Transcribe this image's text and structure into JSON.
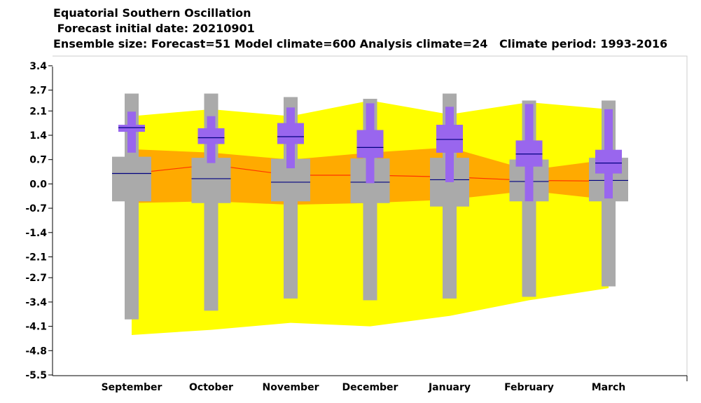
{
  "header": {
    "title": "Equatorial Southern Oscillation",
    "subtitle": " Forecast initial date: 20210901",
    "info": "Ensemble size: Forecast=51 Model climate=600 Analysis climate=24   Climate period: 1993-2016"
  },
  "colors": {
    "climate_outer": "#ffff00",
    "climate_inner": "#ffaa00",
    "climate_median": "#ff3300",
    "model_box": "#aaaaaa",
    "forecast_box": "#9966ee",
    "median_line": "#000080"
  },
  "chart_data": {
    "type": "box",
    "categories": [
      "September",
      "October",
      "November",
      "December",
      "January",
      "February",
      "March"
    ],
    "ylim": [
      -5.5,
      3.7
    ],
    "yticks": [
      "3.4",
      "2.7",
      "2.1",
      "1.4",
      "0.7",
      "0.0",
      "-0.7",
      "-1.4",
      "-2.1",
      "-2.7",
      "-3.4",
      "-4.1",
      "-4.8",
      "-5.5"
    ],
    "climate_band": {
      "min": [
        -4.35,
        -4.2,
        -4.0,
        -4.1,
        -3.8,
        -3.35,
        -3.0
      ],
      "p25": [
        -0.55,
        -0.5,
        -0.6,
        -0.55,
        -0.45,
        -0.2,
        -0.45
      ],
      "median": [
        0.3,
        0.55,
        0.25,
        0.25,
        0.2,
        0.1,
        0.08
      ],
      "p75": [
        1.0,
        0.9,
        0.7,
        0.9,
        1.05,
        0.4,
        0.7
      ],
      "max": [
        1.95,
        2.15,
        1.95,
        2.4,
        2.0,
        2.35,
        2.15
      ]
    },
    "series": [
      {
        "name": "Model climate",
        "min": [
          -3.9,
          -3.65,
          -3.3,
          -3.35,
          -3.3,
          -3.25,
          -2.95
        ],
        "p10": [
          -0.5,
          -0.55,
          -0.5,
          -0.55,
          -0.65,
          -0.5,
          -0.5
        ],
        "p25": [
          -0.5,
          -0.55,
          -0.5,
          -0.55,
          -0.65,
          -0.5,
          -0.5
        ],
        "median": [
          0.3,
          0.15,
          0.05,
          0.05,
          0.12,
          0.07,
          0.1
        ],
        "p75": [
          0.78,
          0.75,
          0.72,
          0.73,
          0.75,
          0.7,
          0.75
        ],
        "p90": [
          0.78,
          0.75,
          0.72,
          0.73,
          0.75,
          0.7,
          0.75
        ],
        "max": [
          2.6,
          2.6,
          2.5,
          2.45,
          2.6,
          2.4,
          2.4
        ]
      },
      {
        "name": "Forecast",
        "min": [
          0.9,
          0.6,
          0.45,
          0.02,
          0.05,
          -0.5,
          -0.42
        ],
        "p10": [
          1.5,
          1.15,
          1.15,
          0.75,
          0.9,
          0.5,
          0.3
        ],
        "p25": [
          1.5,
          1.15,
          1.15,
          0.75,
          0.9,
          0.5,
          0.3
        ],
        "median": [
          1.62,
          1.33,
          1.36,
          1.05,
          1.28,
          0.86,
          0.6
        ],
        "p75": [
          1.7,
          1.6,
          1.75,
          1.55,
          1.7,
          1.25,
          0.98
        ],
        "p90": [
          1.7,
          1.6,
          1.75,
          1.55,
          1.7,
          1.25,
          0.98
        ],
        "max": [
          2.08,
          1.95,
          2.2,
          2.32,
          2.22,
          2.3,
          2.15
        ]
      }
    ]
  }
}
